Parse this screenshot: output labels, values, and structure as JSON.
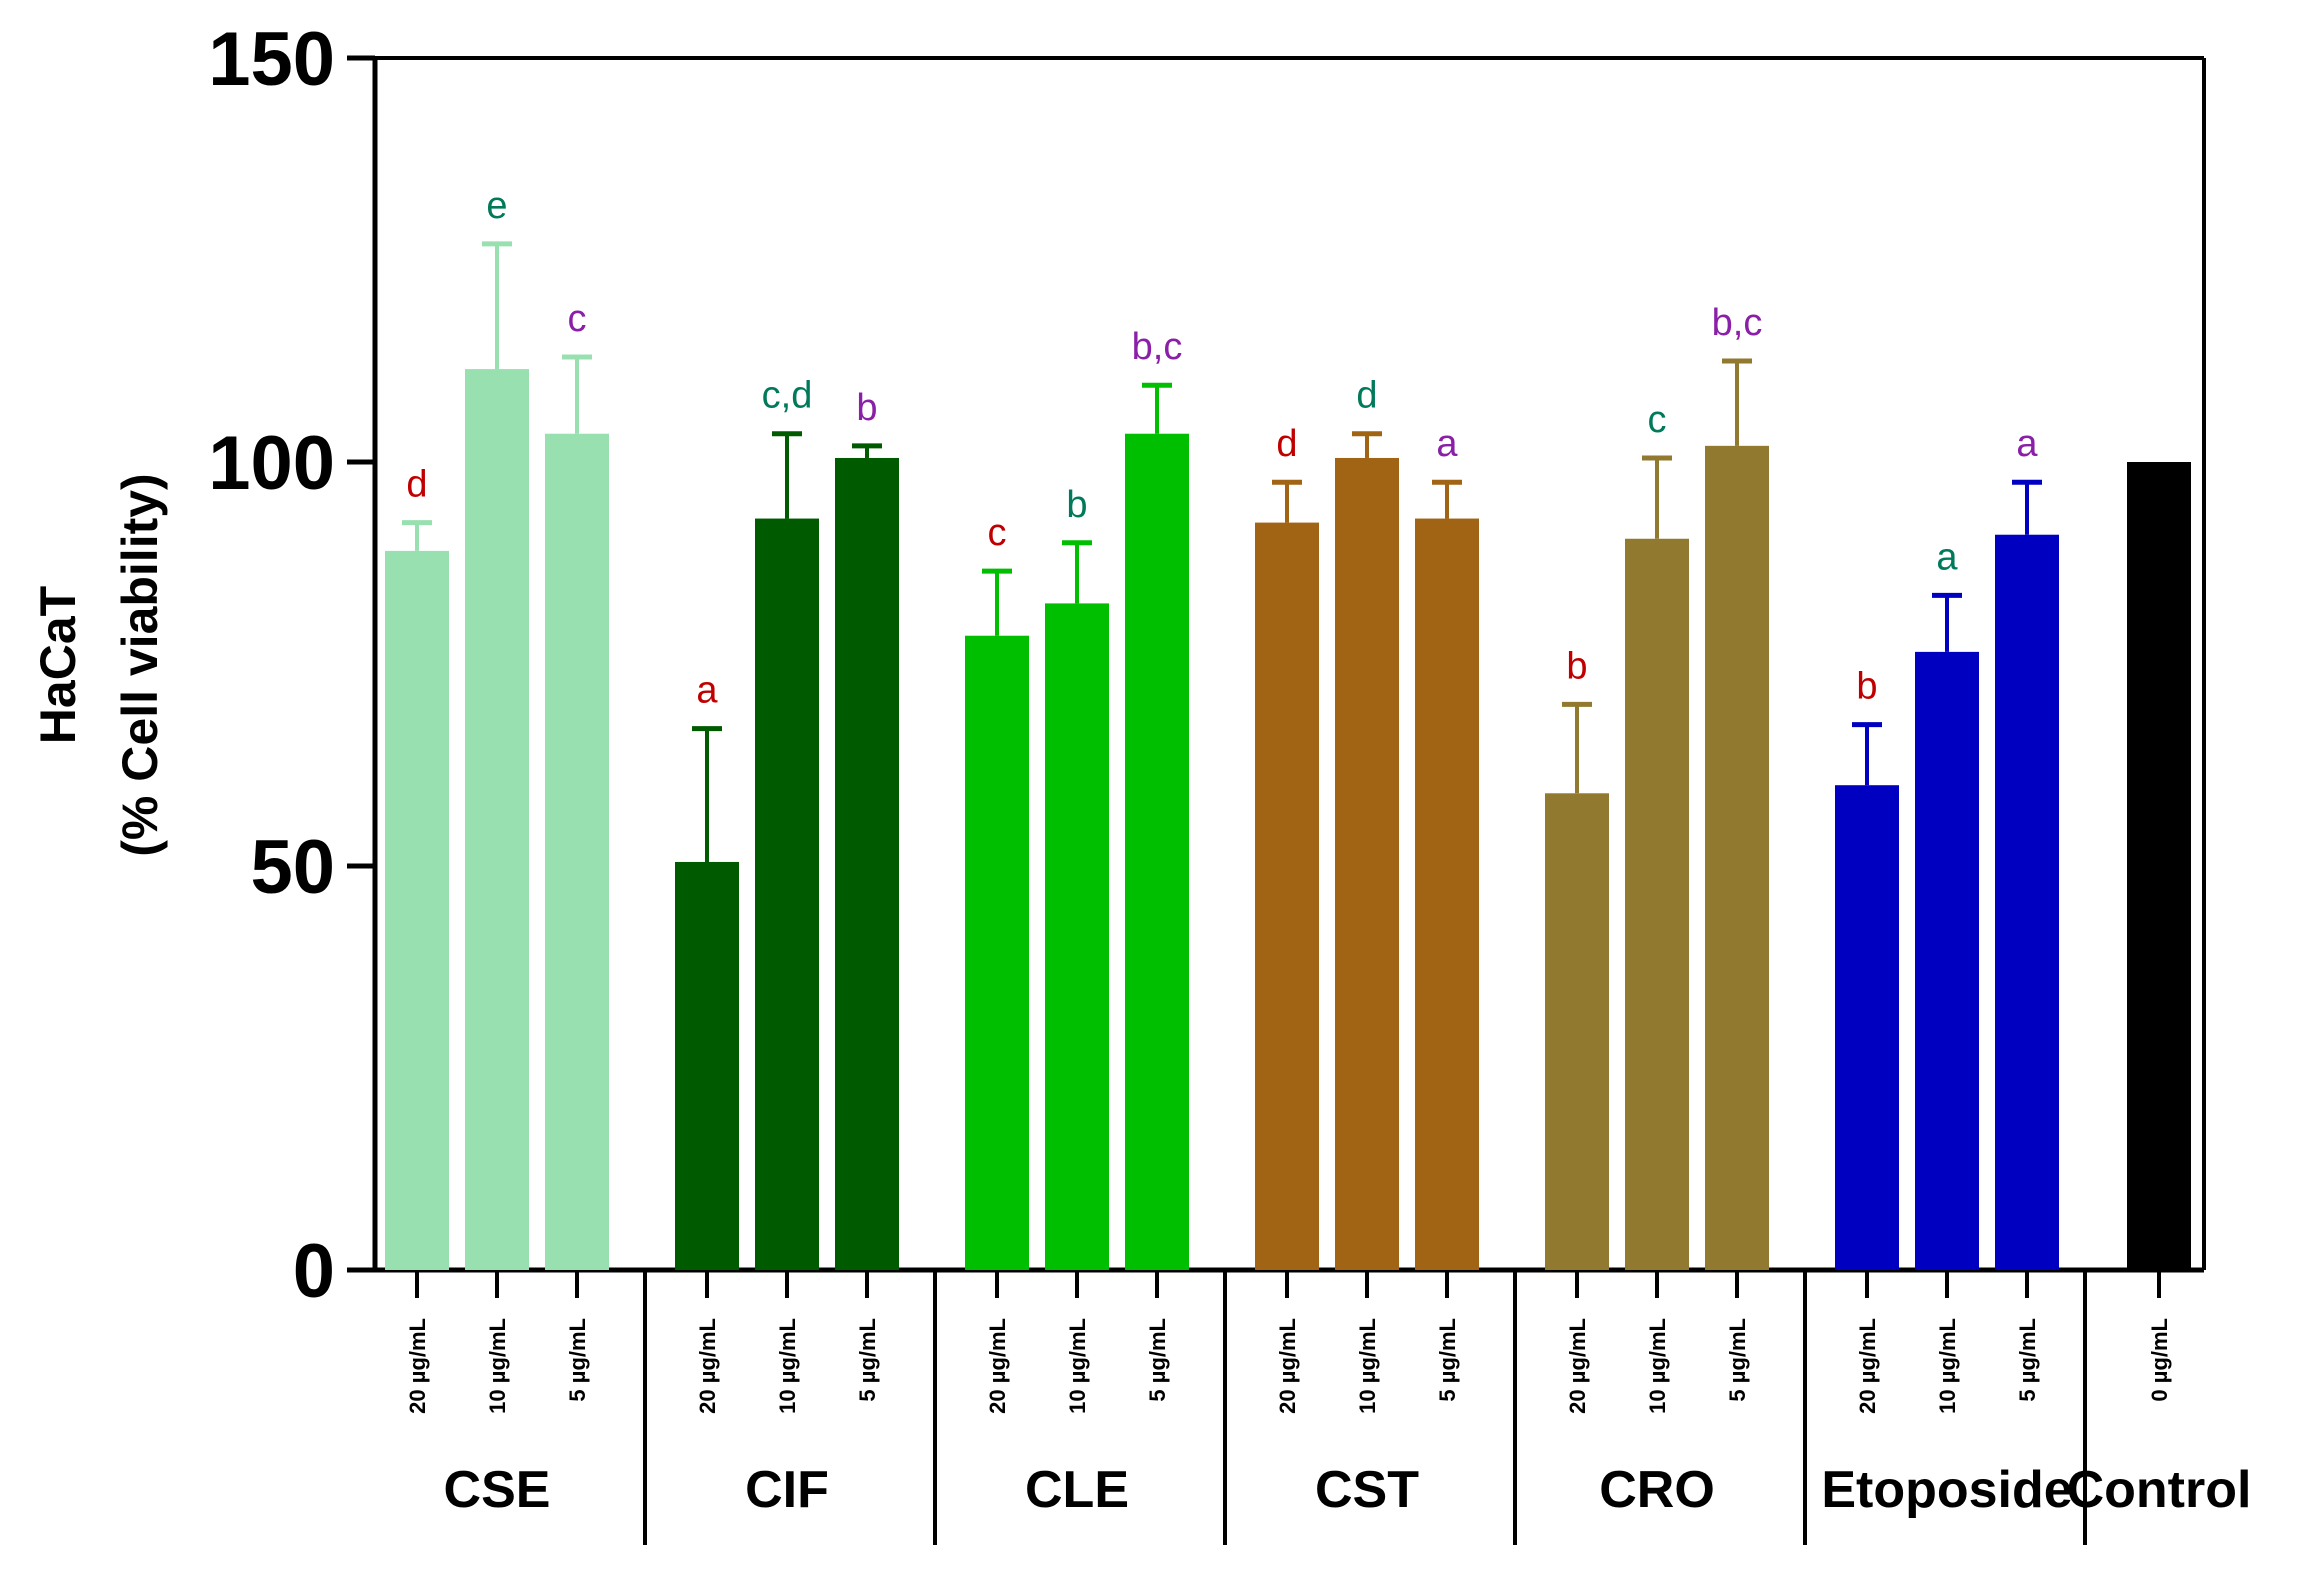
{
  "chart_data": {
    "type": "bar",
    "ylabel_line1": "HaCaT",
    "ylabel_line2": "(%  Cell viability)",
    "ylim": [
      0,
      150
    ],
    "yticks": [
      "0",
      "50",
      "100",
      "150"
    ],
    "groups": [
      {
        "name": "CSE",
        "color": "#99E0B0",
        "bars": [
          {
            "conc": "20 µg/mL",
            "value": 89,
            "error": 3.5,
            "label": "d",
            "label_color": "#C00000"
          },
          {
            "conc": "10 µg/mL",
            "value": 111.5,
            "error": 15.5,
            "label": "e",
            "label_color": "#007A5A"
          },
          {
            "conc": "5 µg/mL",
            "value": 103.5,
            "error": 9.5,
            "label": "c",
            "label_color": "#8A1FA8"
          }
        ]
      },
      {
        "name": "CIF",
        "color": "#005A00",
        "bars": [
          {
            "conc": "20 µg/mL",
            "value": 50.5,
            "error": 16.5,
            "label": "a",
            "label_color": "#C00000"
          },
          {
            "conc": "10 µg/mL",
            "value": 93,
            "error": 10.5,
            "label": "c,d",
            "label_color": "#007A5A"
          },
          {
            "conc": "5 µg/mL",
            "value": 100.5,
            "error": 1.5,
            "label": "b",
            "label_color": "#8A1FA8"
          }
        ]
      },
      {
        "name": "CLE",
        "color": "#00BF00",
        "bars": [
          {
            "conc": "20 µg/mL",
            "value": 78.5,
            "error": 8,
            "label": "c",
            "label_color": "#C00000"
          },
          {
            "conc": "10 µg/mL",
            "value": 82.5,
            "error": 7.5,
            "label": "b",
            "label_color": "#007A5A"
          },
          {
            "conc": "5 µg/mL",
            "value": 103.5,
            "error": 6,
            "label": "b,c",
            "label_color": "#8A1FA8"
          }
        ]
      },
      {
        "name": "CST",
        "color": "#A06414",
        "bars": [
          {
            "conc": "20 µg/mL",
            "value": 92.5,
            "error": 5,
            "label": "d",
            "label_color": "#C00000"
          },
          {
            "conc": "10 µg/mL",
            "value": 100.5,
            "error": 3,
            "label": "d",
            "label_color": "#007A5A"
          },
          {
            "conc": "5 µg/mL",
            "value": 93,
            "error": 4.5,
            "label": "a",
            "label_color": "#8A1FA8"
          }
        ]
      },
      {
        "name": "CRO",
        "color": "#917A2F",
        "bars": [
          {
            "conc": "20 µg/mL",
            "value": 59,
            "error": 11,
            "label": "b",
            "label_color": "#C00000"
          },
          {
            "conc": "10 µg/mL",
            "value": 90.5,
            "error": 10,
            "label": "c",
            "label_color": "#007A5A"
          },
          {
            "conc": "5 µg/mL",
            "value": 102,
            "error": 10.5,
            "label": "b,c",
            "label_color": "#8A1FA8"
          }
        ]
      },
      {
        "name": "Etoposide",
        "color": "#0000C0",
        "bars": [
          {
            "conc": "20 µg/mL",
            "value": 60,
            "error": 7.5,
            "label": "b",
            "label_color": "#C00000"
          },
          {
            "conc": "10 µg/mL",
            "value": 76.5,
            "error": 7,
            "label": "a",
            "label_color": "#007A5A"
          },
          {
            "conc": "5 µg/mL",
            "value": 91,
            "error": 6.5,
            "label": "a",
            "label_color": "#8A1FA8"
          }
        ]
      },
      {
        "name": "Control",
        "color": "#000000",
        "bars": [
          {
            "conc": "0 µg/mL",
            "value": 100,
            "error": 0,
            "label": "",
            "label_color": "#000000"
          }
        ]
      }
    ]
  }
}
